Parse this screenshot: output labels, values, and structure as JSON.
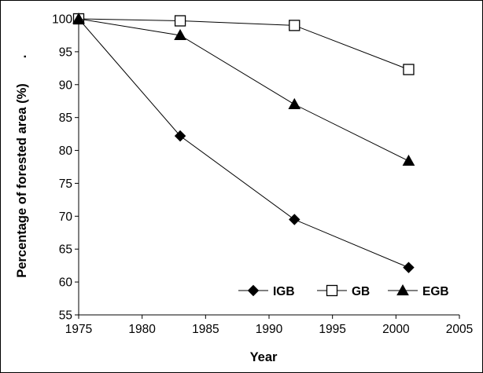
{
  "chart_data": {
    "type": "line",
    "xlabel": "Year",
    "ylabel": "Percentage of forested area (%)",
    "ylabel_suffix": ".",
    "xlim": [
      1975,
      2005
    ],
    "ylim": [
      55,
      100
    ],
    "x_ticks": [
      1975,
      1980,
      1985,
      1990,
      1995,
      2000,
      2005
    ],
    "y_ticks": [
      55,
      60,
      65,
      70,
      75,
      80,
      85,
      90,
      95,
      100
    ],
    "x": [
      1975,
      1983,
      1992,
      2001
    ],
    "grid": false,
    "legend_position": "bottom-right",
    "series": [
      {
        "name": "IGB",
        "marker": "diamond-filled",
        "color": "#000000",
        "values": [
          100,
          82.2,
          69.5,
          62.2
        ]
      },
      {
        "name": "GB",
        "marker": "square-open",
        "color": "#000000",
        "values": [
          100,
          99.7,
          99.0,
          92.3
        ]
      },
      {
        "name": "EGB",
        "marker": "triangle-filled",
        "color": "#000000",
        "values": [
          100,
          97.5,
          87.0,
          78.4
        ]
      }
    ]
  }
}
